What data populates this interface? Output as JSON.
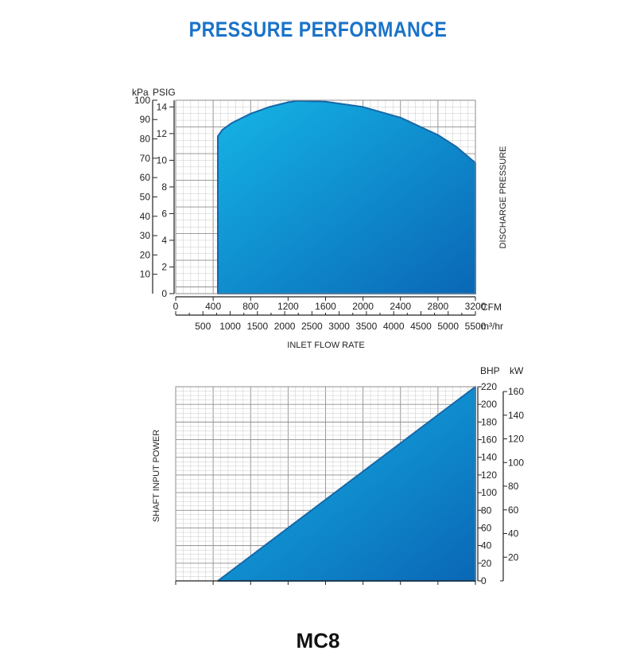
{
  "page": {
    "title": "PRESSURE PERFORMANCE",
    "title_color": "#1a73c9",
    "model": "MC8"
  },
  "colors": {
    "fill_light": "#15b4e6",
    "fill_dark": "#0a67b6",
    "edge": "#1668a8",
    "grid_minor": "#c9c9c9",
    "grid_major": "#8e8e8e"
  },
  "chart_data": [
    {
      "type": "area",
      "title": "PRESSURE PERFORMANCE",
      "xlabel": "INLET FLOW RATE",
      "ylabel": "DISCHARGE PRESSURE",
      "xlim": [
        0,
        3200
      ],
      "ylim": [
        0,
        14.5
      ],
      "grid": true,
      "x_unit": "CFM",
      "x_ticks": [
        0,
        400,
        800,
        1200,
        1600,
        2000,
        2400,
        2800,
        3200
      ],
      "x2_unit": "m³/hr",
      "x2_ticks": [
        500,
        1000,
        1500,
        2000,
        2500,
        3000,
        3500,
        4000,
        4500,
        5000,
        5500
      ],
      "y_unit": "PSIG",
      "y_ticks": [
        0,
        2,
        4,
        6,
        8,
        10,
        12,
        14
      ],
      "y2_unit": "kPa",
      "y2_ticks": [
        10,
        20,
        30,
        40,
        50,
        60,
        70,
        80,
        90,
        100
      ],
      "series": [
        {
          "x": [
            450,
            450,
            500,
            600,
            800,
            1000,
            1200,
            1300,
            1600,
            2000,
            2400,
            2800,
            3000,
            3200,
            3200
          ],
          "values": [
            0,
            11.8,
            12.3,
            12.8,
            13.5,
            14.0,
            14.35,
            14.45,
            14.4,
            14.0,
            13.2,
            11.9,
            11.0,
            9.8,
            0
          ]
        }
      ]
    },
    {
      "type": "area",
      "ylabel": "SHAFT INPUT POWER",
      "xlim": [
        0,
        3200
      ],
      "ylim": [
        0,
        220
      ],
      "grid": true,
      "y_unit": "BHP",
      "y_ticks": [
        0,
        20,
        40,
        60,
        80,
        100,
        120,
        140,
        160,
        180,
        200,
        220
      ],
      "y2_unit": "kW",
      "y2_ticks": [
        20,
        40,
        60,
        80,
        100,
        120,
        140,
        160
      ],
      "x_ticks": [
        0,
        400,
        800,
        1200,
        1600,
        2000,
        2400,
        2800,
        3200
      ],
      "series": [
        {
          "x": [
            450,
            3200,
            3200
          ],
          "values": [
            0,
            220,
            0
          ]
        }
      ]
    }
  ]
}
